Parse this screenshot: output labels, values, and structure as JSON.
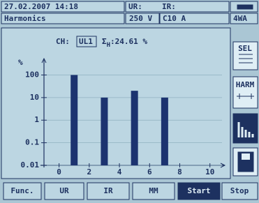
{
  "header": {
    "datetime": "27.02.2007 14:18",
    "ur_label": "UR:",
    "ir_label": "IR:",
    "mode": "Harmonics",
    "voltage": "250 V",
    "current": "C10 A",
    "wiring": "4WA"
  },
  "chart_data": {
    "type": "bar",
    "channel_label": "CH:",
    "channel": "UL1",
    "thd_symbol": "Σ",
    "thd_subscript": "H",
    "thd_value": ":24.61 %",
    "ylabel": "%",
    "x": [
      1,
      3,
      5,
      7
    ],
    "values": [
      100,
      10,
      20,
      10
    ],
    "color": "#1c3370",
    "xlim": [
      -1,
      10.8
    ],
    "xticks": [
      0,
      2,
      4,
      6,
      8,
      10
    ],
    "ylim": [
      0.01,
      400
    ],
    "yticks": [
      100,
      10,
      1,
      0.1,
      0.01
    ],
    "yscale": "log",
    "grid": true
  },
  "side_buttons": [
    "SEL",
    "HARM"
  ],
  "footer": [
    "Func.",
    "UR",
    "IR",
    "MM",
    "Start",
    "Stop"
  ]
}
